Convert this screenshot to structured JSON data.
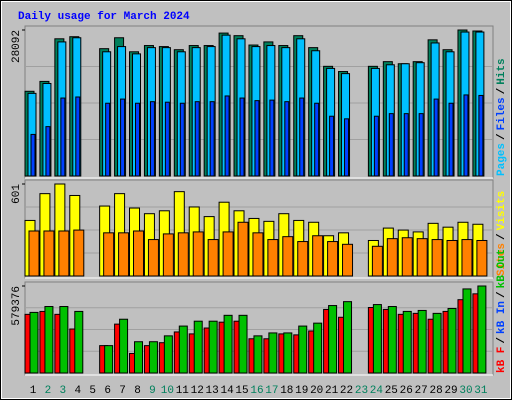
{
  "chart_data": [
    {
      "type": "bar",
      "title": "Daily usage for March 2024",
      "ylim": [
        0,
        28092
      ],
      "yticks": [
        28092
      ],
      "legend_separator": "/",
      "legend": [
        {
          "label": "Pages",
          "color": "#00c0ff"
        },
        {
          "label": "Files",
          "color": "#0040ff"
        },
        {
          "label": "Hits",
          "color": "#00805c"
        }
      ],
      "series": [
        {
          "color": "#00805c",
          "values": [
            16300,
            18200,
            26400,
            26800,
            0,
            24500,
            26600,
            23900,
            25100,
            24900,
            24300,
            25100,
            25100,
            27500,
            27000,
            25200,
            25800,
            25100,
            27000,
            24700,
            21100,
            20100,
            0,
            21100,
            22000,
            21600,
            22000,
            26200,
            24300,
            28092,
            27900
          ]
        },
        {
          "color": "#00c0ff",
          "values": [
            15900,
            17800,
            25800,
            26600,
            0,
            23900,
            24900,
            23500,
            24700,
            24700,
            23900,
            24700,
            24900,
            27100,
            26400,
            24900,
            25100,
            24700,
            26400,
            24100,
            20700,
            19700,
            0,
            20700,
            21400,
            21600,
            21800,
            25600,
            23900,
            27700,
            27700
          ]
        },
        {
          "color": "#0040ff",
          "values": [
            8000,
            9500,
            15000,
            15200,
            0,
            14000,
            14800,
            14000,
            14300,
            14200,
            14000,
            14300,
            14300,
            15400,
            15000,
            14500,
            14600,
            14300,
            15000,
            14000,
            11500,
            11000,
            0,
            11500,
            12000,
            12000,
            12000,
            14800,
            14000,
            15600,
            15500
          ]
        }
      ]
    },
    {
      "type": "bar",
      "ylim": [
        0,
        601
      ],
      "yticks": [
        601
      ],
      "legend_separator": "/",
      "legend": [
        {
          "label": "Sites",
          "color": "#ff8000"
        },
        {
          "label": "Visits",
          "color": "#ffff00"
        }
      ],
      "series": [
        {
          "color": "#ffff00",
          "values": [
            363,
            538,
            601,
            526,
            0,
            457,
            538,
            444,
            407,
            426,
            551,
            451,
            388,
            482,
            426,
            376,
            357,
            407,
            363,
            351,
            263,
            282,
            0,
            232,
            313,
            300,
            288,
            344,
            319,
            351,
            338
          ]
        },
        {
          "color": "#ff8000",
          "values": [
            294,
            294,
            294,
            300,
            0,
            282,
            282,
            294,
            238,
            275,
            282,
            288,
            238,
            288,
            351,
            282,
            238,
            257,
            225,
            263,
            225,
            207,
            0,
            194,
            244,
            250,
            244,
            238,
            232,
            238,
            232
          ]
        }
      ]
    },
    {
      "type": "bar",
      "ylim": [
        0,
        579376
      ],
      "yticks": [
        579376
      ],
      "legend_separator": "/",
      "legend": [
        {
          "label": "kB F",
          "color": "#ff0000"
        },
        {
          "label": "kB In",
          "color": "#0040ff"
        },
        {
          "label": "kB Out",
          "color": "#00c000"
        }
      ],
      "categories": [
        "1",
        "2",
        "3",
        "4",
        "5",
        "6",
        "7",
        "8",
        "9",
        "10",
        "11",
        "12",
        "13",
        "14",
        "15",
        "16",
        "17",
        "18",
        "19",
        "20",
        "21",
        "22",
        "23",
        "24",
        "25",
        "26",
        "27",
        "28",
        "29",
        "30",
        "31"
      ],
      "label_colors": [
        "#000000",
        "#00805c",
        "#00805c",
        "#000000",
        "#000000",
        "#000000",
        "#000000",
        "#000000",
        "#00805c",
        "#00805c",
        "#000000",
        "#000000",
        "#000000",
        "#000000",
        "#000000",
        "#00805c",
        "#00805c",
        "#000000",
        "#000000",
        "#000000",
        "#000000",
        "#000000",
        "#00805c",
        "#00805c",
        "#000000",
        "#000000",
        "#000000",
        "#000000",
        "#000000",
        "#00805c",
        "#00805c"
      ],
      "series": [
        {
          "color": "#ff0000",
          "values": [
            390600,
            410100,
            390600,
            292900,
            0,
            182300,
            325500,
            130200,
            182300,
            201800,
            273400,
            260400,
            299500,
            338500,
            345000,
            227900,
            227900,
            260400,
            253900,
            279900,
            423200,
            371100,
            0,
            436200,
            423200,
            390600,
            397100,
            358100,
            410100,
            488300,
            527300
          ]
        },
        {
          "color": "#00c000",
          "values": [
            403600,
            442700,
            442700,
            410100,
            0,
            182300,
            358100,
            208300,
            208300,
            247400,
            312500,
            345000,
            345000,
            384100,
            384100,
            247400,
            266900,
            266900,
            312500,
            332000,
            449200,
            475200,
            0,
            455700,
            442700,
            410100,
            416600,
            397100,
            429700,
            559900,
            579376
          ]
        }
      ]
    }
  ]
}
